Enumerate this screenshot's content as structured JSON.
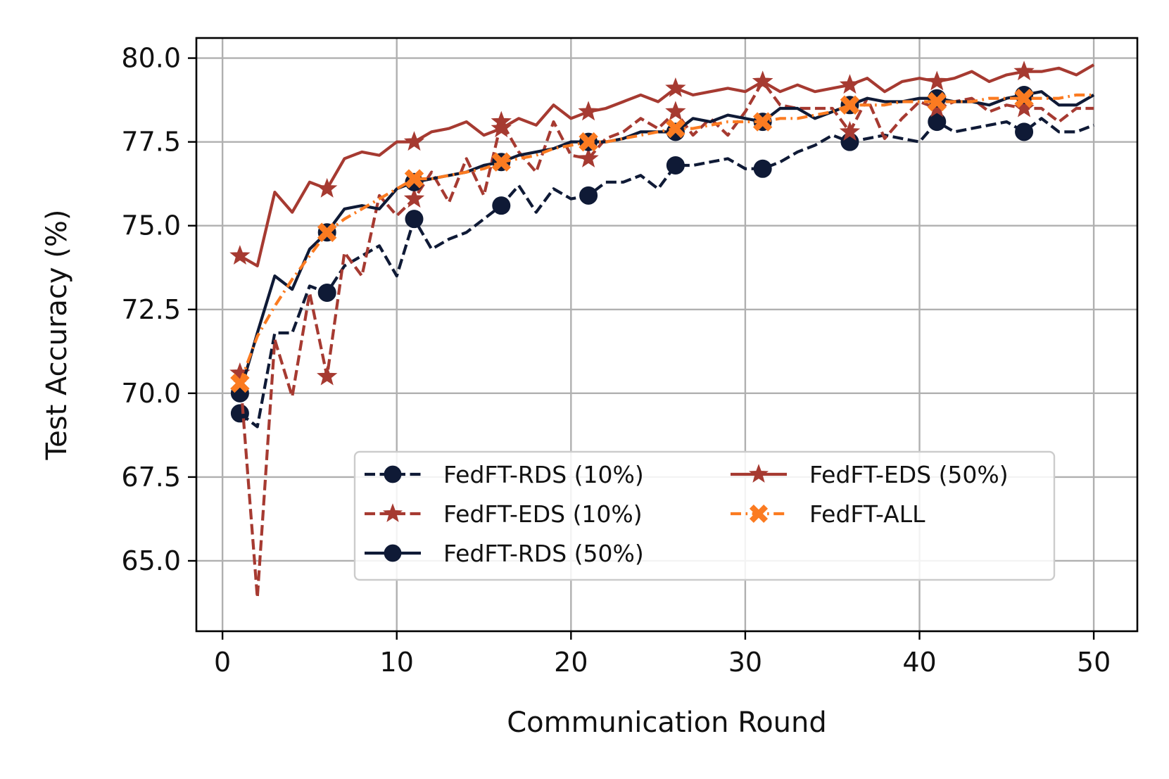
{
  "chart_data": {
    "type": "line",
    "title": "",
    "xlabel": "Communication Round",
    "ylabel": "Test Accuracy (%)",
    "xlim": [
      -1.5,
      52.5
    ],
    "ylim": [
      62.9,
      80.6
    ],
    "xticks": [
      0,
      10,
      20,
      30,
      40,
      50
    ],
    "yticks": [
      65.0,
      67.5,
      70.0,
      72.5,
      75.0,
      77.5,
      80.0
    ],
    "xtick_labels": [
      "0",
      "10",
      "20",
      "30",
      "40",
      "50"
    ],
    "ytick_labels": [
      "65.0",
      "67.5",
      "70.0",
      "72.5",
      "75.0",
      "77.5",
      "80.0"
    ],
    "grid": true,
    "legend_position": "lower-right",
    "legend_columns": 2,
    "x": [
      1,
      2,
      3,
      4,
      5,
      6,
      7,
      8,
      9,
      10,
      11,
      12,
      13,
      14,
      15,
      16,
      17,
      18,
      19,
      20,
      21,
      22,
      23,
      24,
      25,
      26,
      27,
      28,
      29,
      30,
      31,
      32,
      33,
      34,
      35,
      36,
      37,
      38,
      39,
      40,
      41,
      42,
      43,
      44,
      45,
      46,
      47,
      48,
      49,
      50
    ],
    "marker_every": 5,
    "series": [
      {
        "name": "FedFT-RDS (10%)",
        "color": "#0f1a36",
        "dash": "dashed",
        "marker": "circle",
        "values": [
          69.4,
          69.0,
          71.8,
          71.8,
          73.2,
          73.0,
          73.8,
          74.1,
          74.4,
          73.5,
          75.2,
          74.3,
          74.6,
          74.8,
          75.2,
          75.6,
          76.2,
          75.4,
          76.1,
          75.8,
          75.9,
          76.3,
          76.3,
          76.5,
          76.1,
          76.8,
          76.8,
          76.9,
          77.0,
          76.7,
          76.7,
          76.9,
          77.2,
          77.4,
          77.7,
          77.5,
          77.6,
          77.7,
          77.6,
          77.5,
          78.1,
          77.8,
          77.9,
          78.0,
          78.1,
          77.8,
          78.2,
          77.8,
          77.8,
          78.0
        ]
      },
      {
        "name": "FedFT-EDS (10%)",
        "color": "#a63a31",
        "dash": "dashed",
        "marker": "star",
        "values": [
          70.6,
          63.9,
          71.6,
          69.9,
          73.0,
          70.5,
          74.2,
          73.5,
          75.9,
          75.3,
          75.8,
          76.6,
          75.7,
          77.0,
          75.9,
          78.1,
          77.2,
          76.6,
          78.1,
          77.1,
          77.0,
          77.6,
          77.8,
          78.2,
          77.9,
          78.4,
          77.7,
          78.2,
          77.7,
          78.4,
          79.3,
          78.6,
          78.5,
          78.5,
          78.5,
          77.8,
          78.8,
          77.6,
          78.2,
          78.7,
          78.5,
          78.7,
          78.8,
          78.4,
          78.6,
          78.5,
          78.5,
          78.1,
          78.5,
          78.5
        ]
      },
      {
        "name": "FedFT-RDS (50%)",
        "color": "#0f1a36",
        "dash": "solid",
        "marker": "circle",
        "values": [
          70.0,
          71.8,
          73.5,
          73.1,
          74.3,
          74.8,
          75.5,
          75.6,
          75.5,
          76.1,
          76.3,
          76.4,
          76.5,
          76.6,
          76.8,
          76.9,
          77.1,
          77.2,
          77.3,
          77.5,
          77.5,
          77.5,
          77.6,
          77.8,
          77.8,
          77.8,
          78.2,
          78.1,
          78.3,
          78.2,
          78.1,
          78.5,
          78.5,
          78.2,
          78.4,
          78.6,
          78.8,
          78.7,
          78.7,
          78.8,
          78.8,
          78.7,
          78.7,
          78.6,
          78.8,
          78.9,
          79.0,
          78.6,
          78.6,
          78.9
        ]
      },
      {
        "name": "FedFT-EDS (50%)",
        "color": "#a63a31",
        "dash": "solid",
        "marker": "star",
        "values": [
          74.1,
          73.8,
          76.0,
          75.4,
          76.3,
          76.1,
          77.0,
          77.2,
          77.1,
          77.5,
          77.5,
          77.8,
          77.9,
          78.1,
          77.7,
          77.9,
          78.2,
          78.0,
          78.6,
          78.2,
          78.4,
          78.5,
          78.7,
          78.9,
          78.7,
          79.1,
          78.9,
          79.0,
          79.1,
          79.0,
          79.3,
          79.0,
          79.2,
          79.0,
          79.1,
          79.2,
          79.4,
          79.0,
          79.3,
          79.4,
          79.3,
          79.4,
          79.6,
          79.3,
          79.5,
          79.6,
          79.6,
          79.7,
          79.5,
          79.8
        ]
      },
      {
        "name": "FedFT-ALL",
        "color": "#fb7b21",
        "dash": "dashdot",
        "marker": "x-filled",
        "values": [
          70.3,
          71.7,
          72.6,
          73.4,
          74.1,
          74.8,
          75.2,
          75.5,
          75.8,
          76.1,
          76.4,
          76.4,
          76.5,
          76.6,
          76.7,
          76.9,
          77.0,
          77.1,
          77.3,
          77.4,
          77.5,
          77.5,
          77.6,
          77.7,
          77.8,
          77.9,
          77.9,
          78.0,
          78.1,
          78.1,
          78.1,
          78.2,
          78.2,
          78.3,
          78.4,
          78.6,
          78.6,
          78.6,
          78.7,
          78.7,
          78.7,
          78.7,
          78.7,
          78.8,
          78.8,
          78.8,
          78.8,
          78.8,
          78.9,
          78.9
        ]
      }
    ]
  }
}
